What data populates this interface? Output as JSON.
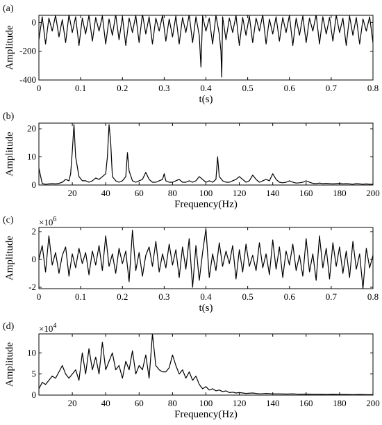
{
  "chart_data": [
    {
      "type": "line",
      "panel_label": "(a)",
      "ylabel": "Amplitude",
      "xlabel": "t(s)",
      "xlim": [
        0,
        0.8
      ],
      "ylim": [
        -400,
        50
      ],
      "xticks": [
        0,
        0.1,
        0.2,
        0.3,
        0.4,
        0.5,
        0.6,
        0.7,
        0.8
      ],
      "xtick_labels": [
        "0",
        "0.1",
        "0.2",
        "0.3",
        "0.4",
        "0.5",
        "0.6",
        "0.7",
        "0.8"
      ],
      "yticks": [
        -400,
        -200,
        0
      ],
      "ytick_labels": [
        "-400",
        "-200",
        "0"
      ],
      "exponent_label": "",
      "grid": false,
      "series": [
        {
          "x": [
            0,
            0.008,
            0.016,
            0.024,
            0.032,
            0.04,
            0.048,
            0.056,
            0.064,
            0.072,
            0.08,
            0.088,
            0.096,
            0.104,
            0.112,
            0.12,
            0.128,
            0.136,
            0.144,
            0.152,
            0.16,
            0.168,
            0.176,
            0.184,
            0.192,
            0.2,
            0.208,
            0.216,
            0.224,
            0.232,
            0.24,
            0.248,
            0.256,
            0.264,
            0.272,
            0.28,
            0.288,
            0.296,
            0.304,
            0.312,
            0.32,
            0.328,
            0.336,
            0.344,
            0.352,
            0.36,
            0.368,
            0.376,
            0.384,
            0.388,
            0.392,
            0.4,
            0.408,
            0.416,
            0.424,
            0.432,
            0.436,
            0.438,
            0.44,
            0.448,
            0.456,
            0.464,
            0.472,
            0.48,
            0.488,
            0.496,
            0.504,
            0.512,
            0.52,
            0.528,
            0.536,
            0.544,
            0.552,
            0.56,
            0.568,
            0.576,
            0.584,
            0.592,
            0.6,
            0.608,
            0.616,
            0.624,
            0.632,
            0.64,
            0.648,
            0.656,
            0.664,
            0.672,
            0.68,
            0.688,
            0.696,
            0.704,
            0.712,
            0.72,
            0.728,
            0.736,
            0.744,
            0.752,
            0.76,
            0.768,
            0.776,
            0.784,
            0.792,
            0.8
          ],
          "y": [
            -120,
            40,
            -150,
            30,
            -60,
            50,
            -100,
            20,
            -140,
            55,
            -70,
            40,
            -160,
            30,
            -80,
            50,
            -130,
            35,
            -60,
            45,
            -150,
            25,
            -90,
            55,
            -120,
            40,
            -160,
            30,
            -70,
            50,
            -140,
            60,
            -80,
            40,
            -150,
            30,
            -60,
            50,
            -130,
            25,
            -100,
            45,
            -150,
            35,
            -70,
            55,
            -140,
            40,
            -90,
            -310,
            45,
            -60,
            30,
            -150,
            50,
            -80,
            -200,
            -380,
            40,
            -120,
            30,
            -70,
            50,
            -160,
            35,
            -90,
            45,
            -140,
            30,
            -60,
            55,
            -150,
            25,
            -80,
            40,
            -130,
            35,
            -70,
            50,
            -160,
            30,
            -90,
            45,
            -140,
            30,
            -60,
            55,
            -150,
            40,
            -80,
            35,
            -130,
            50,
            -70,
            30,
            -160,
            45,
            -90,
            35,
            -150,
            25,
            -60,
            40,
            -140
          ]
        }
      ]
    },
    {
      "type": "line",
      "panel_label": "(b)",
      "ylabel": "Amplitude",
      "xlabel": "Frequency(Hz)",
      "xlim": [
        0,
        200
      ],
      "ylim": [
        0,
        22
      ],
      "xticks": [
        20,
        40,
        60,
        80,
        100,
        120,
        140,
        160,
        180,
        200
      ],
      "xtick_labels": [
        "20",
        "40",
        "60",
        "80",
        "100",
        "120",
        "140",
        "160",
        "180",
        "200"
      ],
      "yticks": [
        0,
        10,
        20
      ],
      "ytick_labels": [
        "0",
        "10",
        "20"
      ],
      "exponent_label": "",
      "grid": false,
      "series": [
        {
          "x": [
            0,
            2,
            4,
            6,
            8,
            10,
            12,
            14,
            16,
            18,
            19,
            20,
            21,
            22,
            24,
            26,
            28,
            30,
            32,
            34,
            36,
            38,
            40,
            41,
            42,
            43,
            44,
            46,
            48,
            50,
            52,
            53,
            54,
            56,
            58,
            60,
            62,
            64,
            66,
            68,
            70,
            72,
            74,
            75,
            76,
            78,
            80,
            82,
            84,
            86,
            88,
            90,
            92,
            94,
            96,
            98,
            100,
            102,
            104,
            106,
            107,
            108,
            110,
            112,
            114,
            116,
            118,
            120,
            122,
            124,
            126,
            128,
            130,
            132,
            134,
            136,
            138,
            140,
            142,
            144,
            146,
            148,
            150,
            152,
            154,
            156,
            158,
            160,
            162,
            164,
            166,
            168,
            170,
            172,
            174,
            176,
            178,
            180,
            182,
            184,
            186,
            188,
            190,
            192,
            194,
            196,
            198,
            200
          ],
          "y": [
            6,
            0.5,
            0.3,
            0.4,
            0.5,
            0.4,
            0.6,
            1,
            2,
            1.5,
            4,
            12,
            21.5,
            10,
            3,
            1.5,
            1.5,
            1,
            1.5,
            2.5,
            2,
            3,
            4,
            10,
            21.5,
            15,
            3,
            1.5,
            1,
            1.5,
            3,
            11.5,
            5,
            1.5,
            1,
            1.5,
            2,
            4.5,
            2,
            1,
            1,
            1.5,
            2,
            4,
            1.5,
            1,
            1,
            1.5,
            2,
            1,
            1,
            1.5,
            1,
            1.5,
            3,
            2,
            1,
            1.5,
            1,
            2,
            10,
            3,
            1.5,
            1,
            1,
            1.5,
            2,
            3,
            2,
            1,
            1.5,
            3.5,
            2,
            1,
            1.5,
            2,
            1.5,
            4,
            2,
            1,
            0.8,
            1,
            1.5,
            1,
            0.7,
            0.8,
            1,
            1.5,
            1,
            0.6,
            0.5,
            0.7,
            0.5,
            0.6,
            0.5,
            0.4,
            0.5,
            0.6,
            0.4,
            0.5,
            0.4,
            0.3,
            0.5,
            0.4,
            0.3,
            0.4,
            0.3,
            0.3
          ]
        }
      ]
    },
    {
      "type": "line",
      "panel_label": "(c)",
      "ylabel": "Amplitude",
      "xlabel": "t(s)",
      "xlim": [
        0,
        0.8
      ],
      "ylim": [
        -2.1,
        2.3
      ],
      "xticks": [
        0,
        0.1,
        0.2,
        0.3,
        0.4,
        0.5,
        0.6,
        0.7,
        0.8
      ],
      "xtick_labels": [
        "0",
        "0.1",
        "0.2",
        "0.3",
        "0.4",
        "0.5",
        "0.6",
        "0.7",
        "0.8"
      ],
      "yticks": [
        -2,
        0,
        2
      ],
      "ytick_labels": [
        "-2",
        "0",
        "2"
      ],
      "exponent_label": "×10",
      "exponent_power": "6",
      "grid": false,
      "series": [
        {
          "x": [
            0,
            0.008,
            0.016,
            0.024,
            0.032,
            0.04,
            0.048,
            0.056,
            0.064,
            0.072,
            0.08,
            0.088,
            0.096,
            0.104,
            0.112,
            0.12,
            0.128,
            0.136,
            0.144,
            0.152,
            0.16,
            0.168,
            0.176,
            0.184,
            0.192,
            0.2,
            0.208,
            0.216,
            0.224,
            0.232,
            0.24,
            0.248,
            0.256,
            0.264,
            0.272,
            0.28,
            0.288,
            0.296,
            0.304,
            0.312,
            0.32,
            0.328,
            0.336,
            0.344,
            0.352,
            0.36,
            0.368,
            0.376,
            0.384,
            0.392,
            0.4,
            0.408,
            0.416,
            0.424,
            0.432,
            0.44,
            0.448,
            0.456,
            0.464,
            0.472,
            0.48,
            0.488,
            0.496,
            0.504,
            0.512,
            0.52,
            0.528,
            0.536,
            0.544,
            0.552,
            0.56,
            0.568,
            0.576,
            0.584,
            0.592,
            0.6,
            0.608,
            0.616,
            0.624,
            0.632,
            0.64,
            0.648,
            0.656,
            0.664,
            0.672,
            0.68,
            0.688,
            0.696,
            0.704,
            0.712,
            0.72,
            0.728,
            0.736,
            0.744,
            0.752,
            0.76,
            0.768,
            0.776,
            0.784,
            0.792,
            0.8
          ],
          "y": [
            0,
            1.0,
            -0.9,
            1.7,
            -0.4,
            0.5,
            -1.0,
            0.3,
            0.9,
            -1.2,
            0.4,
            -0.6,
            0.8,
            -0.3,
            0.5,
            -1.1,
            0.6,
            -0.4,
            1.0,
            -0.8,
            1.7,
            -0.5,
            0.4,
            -1.0,
            0.8,
            -0.3,
            0.6,
            -1.6,
            2.1,
            -0.8,
            0.5,
            -1.2,
            0.3,
            0.9,
            -0.5,
            1.3,
            -0.9,
            0.4,
            -0.6,
            1.1,
            -0.4,
            0.7,
            -1.3,
            0.9,
            -0.7,
            1.5,
            -2.0,
            1.0,
            -1.5,
            0.5,
            2.2,
            -1.3,
            0.4,
            -0.8,
            1.2,
            -0.5,
            0.6,
            -0.3,
            1.0,
            -1.4,
            0.7,
            -0.9,
            1.1,
            -0.5,
            0.3,
            -0.8,
            1.2,
            -0.6,
            0.4,
            -1.1,
            1.4,
            -0.7,
            0.9,
            -1.3,
            0.6,
            -0.4,
            1.1,
            -0.8,
            0.3,
            -1.2,
            1.5,
            -0.9,
            0.4,
            -1.5,
            1.7,
            -0.6,
            0.8,
            -1.4,
            1.2,
            -0.5,
            0.9,
            -1.0,
            0.6,
            -1.3,
            1.3,
            -0.7,
            0.4,
            -2.1,
            0.8,
            -0.6,
            0.3
          ]
        }
      ]
    },
    {
      "type": "line",
      "panel_label": "(d)",
      "ylabel": "Amplitude",
      "xlabel": "Frequency(Hz)",
      "xlim": [
        0,
        200
      ],
      "ylim": [
        0,
        14.5
      ],
      "xticks": [
        20,
        40,
        60,
        80,
        100,
        120,
        140,
        160,
        180,
        200
      ],
      "xtick_labels": [
        "20",
        "40",
        "60",
        "80",
        "100",
        "120",
        "140",
        "160",
        "180",
        "200"
      ],
      "yticks": [
        0,
        5,
        10
      ],
      "ytick_labels": [
        "0",
        "5",
        "10"
      ],
      "exponent_label": "×10",
      "exponent_power": "4",
      "grid": false,
      "series": [
        {
          "x": [
            0,
            2,
            4,
            6,
            8,
            10,
            12,
            14,
            16,
            18,
            20,
            22,
            24,
            26,
            28,
            30,
            32,
            34,
            36,
            38,
            40,
            42,
            44,
            46,
            48,
            50,
            52,
            54,
            56,
            58,
            60,
            62,
            64,
            66,
            68,
            70,
            72,
            74,
            76,
            78,
            80,
            82,
            84,
            86,
            88,
            90,
            92,
            94,
            96,
            98,
            100,
            102,
            104,
            106,
            108,
            110,
            112,
            114,
            116,
            118,
            120,
            124,
            128,
            132,
            136,
            140,
            144,
            148,
            152,
            156,
            160,
            164,
            168,
            172,
            176,
            180,
            184,
            188,
            192,
            196,
            200
          ],
          "y": [
            1.5,
            3,
            2.5,
            3.5,
            4.5,
            4,
            5.5,
            7,
            5,
            4,
            5,
            6,
            3.5,
            10,
            5,
            11,
            6,
            9,
            5,
            12.5,
            6,
            8,
            10,
            6,
            7,
            4,
            8,
            6,
            10.5,
            5,
            7,
            6,
            9.5,
            4,
            14.5,
            7,
            6,
            5.5,
            5.5,
            6.5,
            9.5,
            7,
            5,
            6,
            4,
            5.5,
            3.5,
            4.5,
            2.5,
            1.5,
            2,
            1.2,
            1.5,
            1,
            1.2,
            0.8,
            1,
            0.6,
            0.7,
            0.5,
            0.6,
            0.4,
            0.5,
            0.3,
            0.4,
            0.3,
            0.3,
            0.25,
            0.3,
            0.2,
            0.25,
            0.2,
            0.2,
            0.15,
            0.2,
            0.15,
            0.15,
            0.1,
            0.15,
            0.1,
            0.1
          ]
        }
      ]
    }
  ]
}
